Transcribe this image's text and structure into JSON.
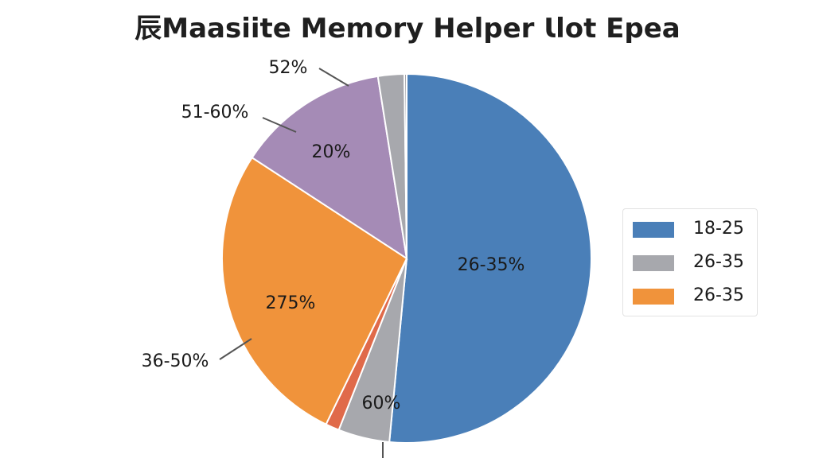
{
  "chart_data": {
    "type": "pie",
    "title": "⾠Maasiite Memory Helper Ɩlot Epea",
    "slices": [
      {
        "value": 51.5,
        "color": "#4a7fb8",
        "inner_label": "26-35%"
      },
      {
        "value": 4.5,
        "color": "#a7a8ad",
        "inner_label": "60%"
      },
      {
        "value": 1.2,
        "color": "#e06a4a"
      },
      {
        "value": 27.0,
        "color": "#f0933b",
        "inner_label": "275%",
        "outer_label": "36-50%"
      },
      {
        "value": 13.3,
        "color": "#a58bb6",
        "inner_label": "20%",
        "outer_label": "51-60%"
      },
      {
        "value": 2.3,
        "color": "#a7a8ad",
        "outer_label": "52%"
      },
      {
        "value": 0.2,
        "color": "#9a9aa0"
      }
    ],
    "legend": {
      "position": "right",
      "entries": [
        {
          "label": "18-25",
          "color": "#4a7fb8"
        },
        {
          "label": "26-35",
          "color": "#a7a8ad"
        },
        {
          "label": "26-35",
          "color": "#f0933b"
        }
      ]
    }
  }
}
